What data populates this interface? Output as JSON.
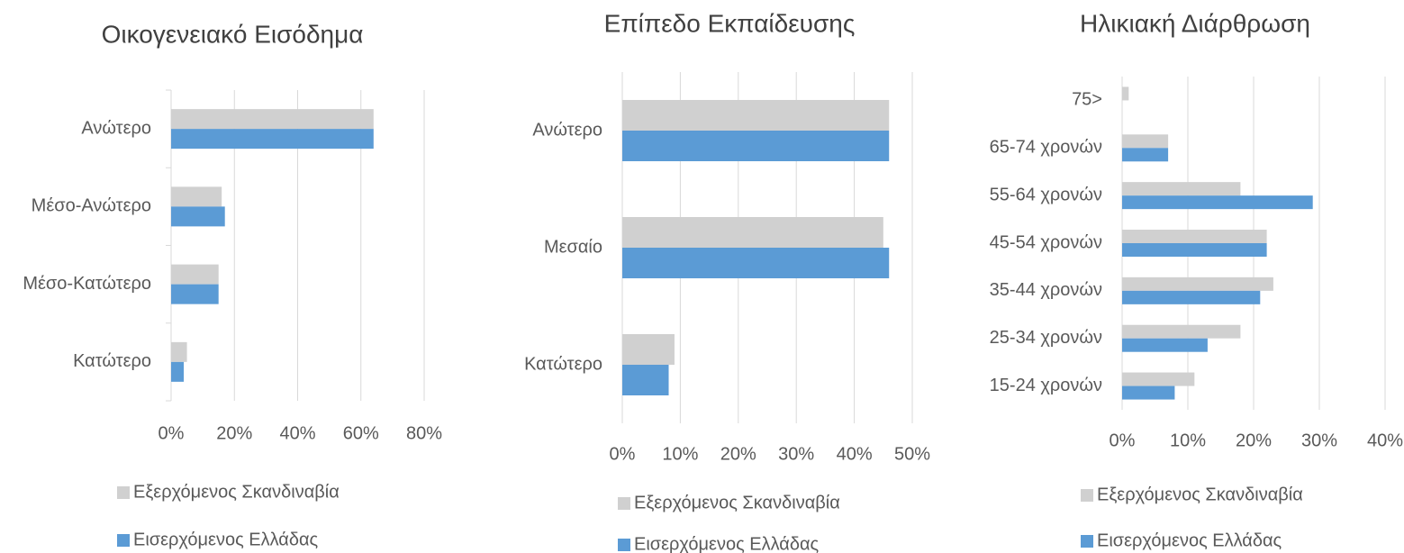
{
  "chart_data": [
    {
      "type": "bar",
      "orientation": "horizontal",
      "title": "Οικογενειακό Εισόδημα",
      "categories": [
        "Ανώτερο",
        "Μέσο-Ανώτερο",
        "Μέσο-Κατώτερο",
        "Κατώτερο"
      ],
      "series": [
        {
          "name": "Εξερχόμενος Σκανδιναβία",
          "color": "#d0d0d0",
          "values": [
            64,
            16,
            15,
            5
          ]
        },
        {
          "name": "Εισερχόμενος Ελλάδας",
          "color": "#5b9bd5",
          "values": [
            64,
            17,
            15,
            4
          ]
        }
      ],
      "xlim": [
        0,
        80
      ],
      "xticks": [
        {
          "value": 0,
          "label": "0%"
        },
        {
          "value": 20,
          "label": "20%"
        },
        {
          "value": 40,
          "label": "40%"
        },
        {
          "value": 60,
          "label": "60%"
        },
        {
          "value": 80,
          "label": "80%"
        }
      ],
      "grid": true
    },
    {
      "type": "bar",
      "orientation": "horizontal",
      "title": "Επίπεδο Εκπαίδευσης",
      "categories": [
        "Ανώτερο",
        "Μεσαίο",
        "Κατώτερο"
      ],
      "series": [
        {
          "name": "Εξερχόμενος Σκανδιναβία",
          "color": "#d0d0d0",
          "values": [
            46,
            45,
            9
          ]
        },
        {
          "name": "Εισερχόμενος Ελλάδας",
          "color": "#5b9bd5",
          "values": [
            46,
            46,
            8
          ]
        }
      ],
      "xlim": [
        0,
        50
      ],
      "xticks": [
        {
          "value": 0,
          "label": "0%"
        },
        {
          "value": 10,
          "label": "10%"
        },
        {
          "value": 20,
          "label": "20%"
        },
        {
          "value": 30,
          "label": "30%"
        },
        {
          "value": 40,
          "label": "40%"
        },
        {
          "value": 50,
          "label": "50%"
        }
      ],
      "grid": true
    },
    {
      "type": "bar",
      "orientation": "horizontal",
      "title": "Ηλικιακή Διάρθρωση",
      "categories": [
        "75>",
        "65-74 χρονών",
        "55-64 χρονών",
        "45-54 χρονών",
        "35-44 χρονών",
        "25-34 χρονών",
        "15-24 χρονών"
      ],
      "series": [
        {
          "name": "Εξερχόμενος Σκανδιναβία",
          "color": "#d0d0d0",
          "values": [
            1,
            7,
            18,
            22,
            23,
            18,
            11
          ]
        },
        {
          "name": "Εισερχόμενος Ελλάδας",
          "color": "#5b9bd5",
          "values": [
            0,
            7,
            29,
            22,
            21,
            13,
            8
          ]
        }
      ],
      "xlim": [
        0,
        40
      ],
      "xticks": [
        {
          "value": 0,
          "label": "0%"
        },
        {
          "value": 10,
          "label": "10%"
        },
        {
          "value": 20,
          "label": "20%"
        },
        {
          "value": 30,
          "label": "30%"
        },
        {
          "value": 40,
          "label": "40%"
        }
      ],
      "grid": true
    }
  ]
}
